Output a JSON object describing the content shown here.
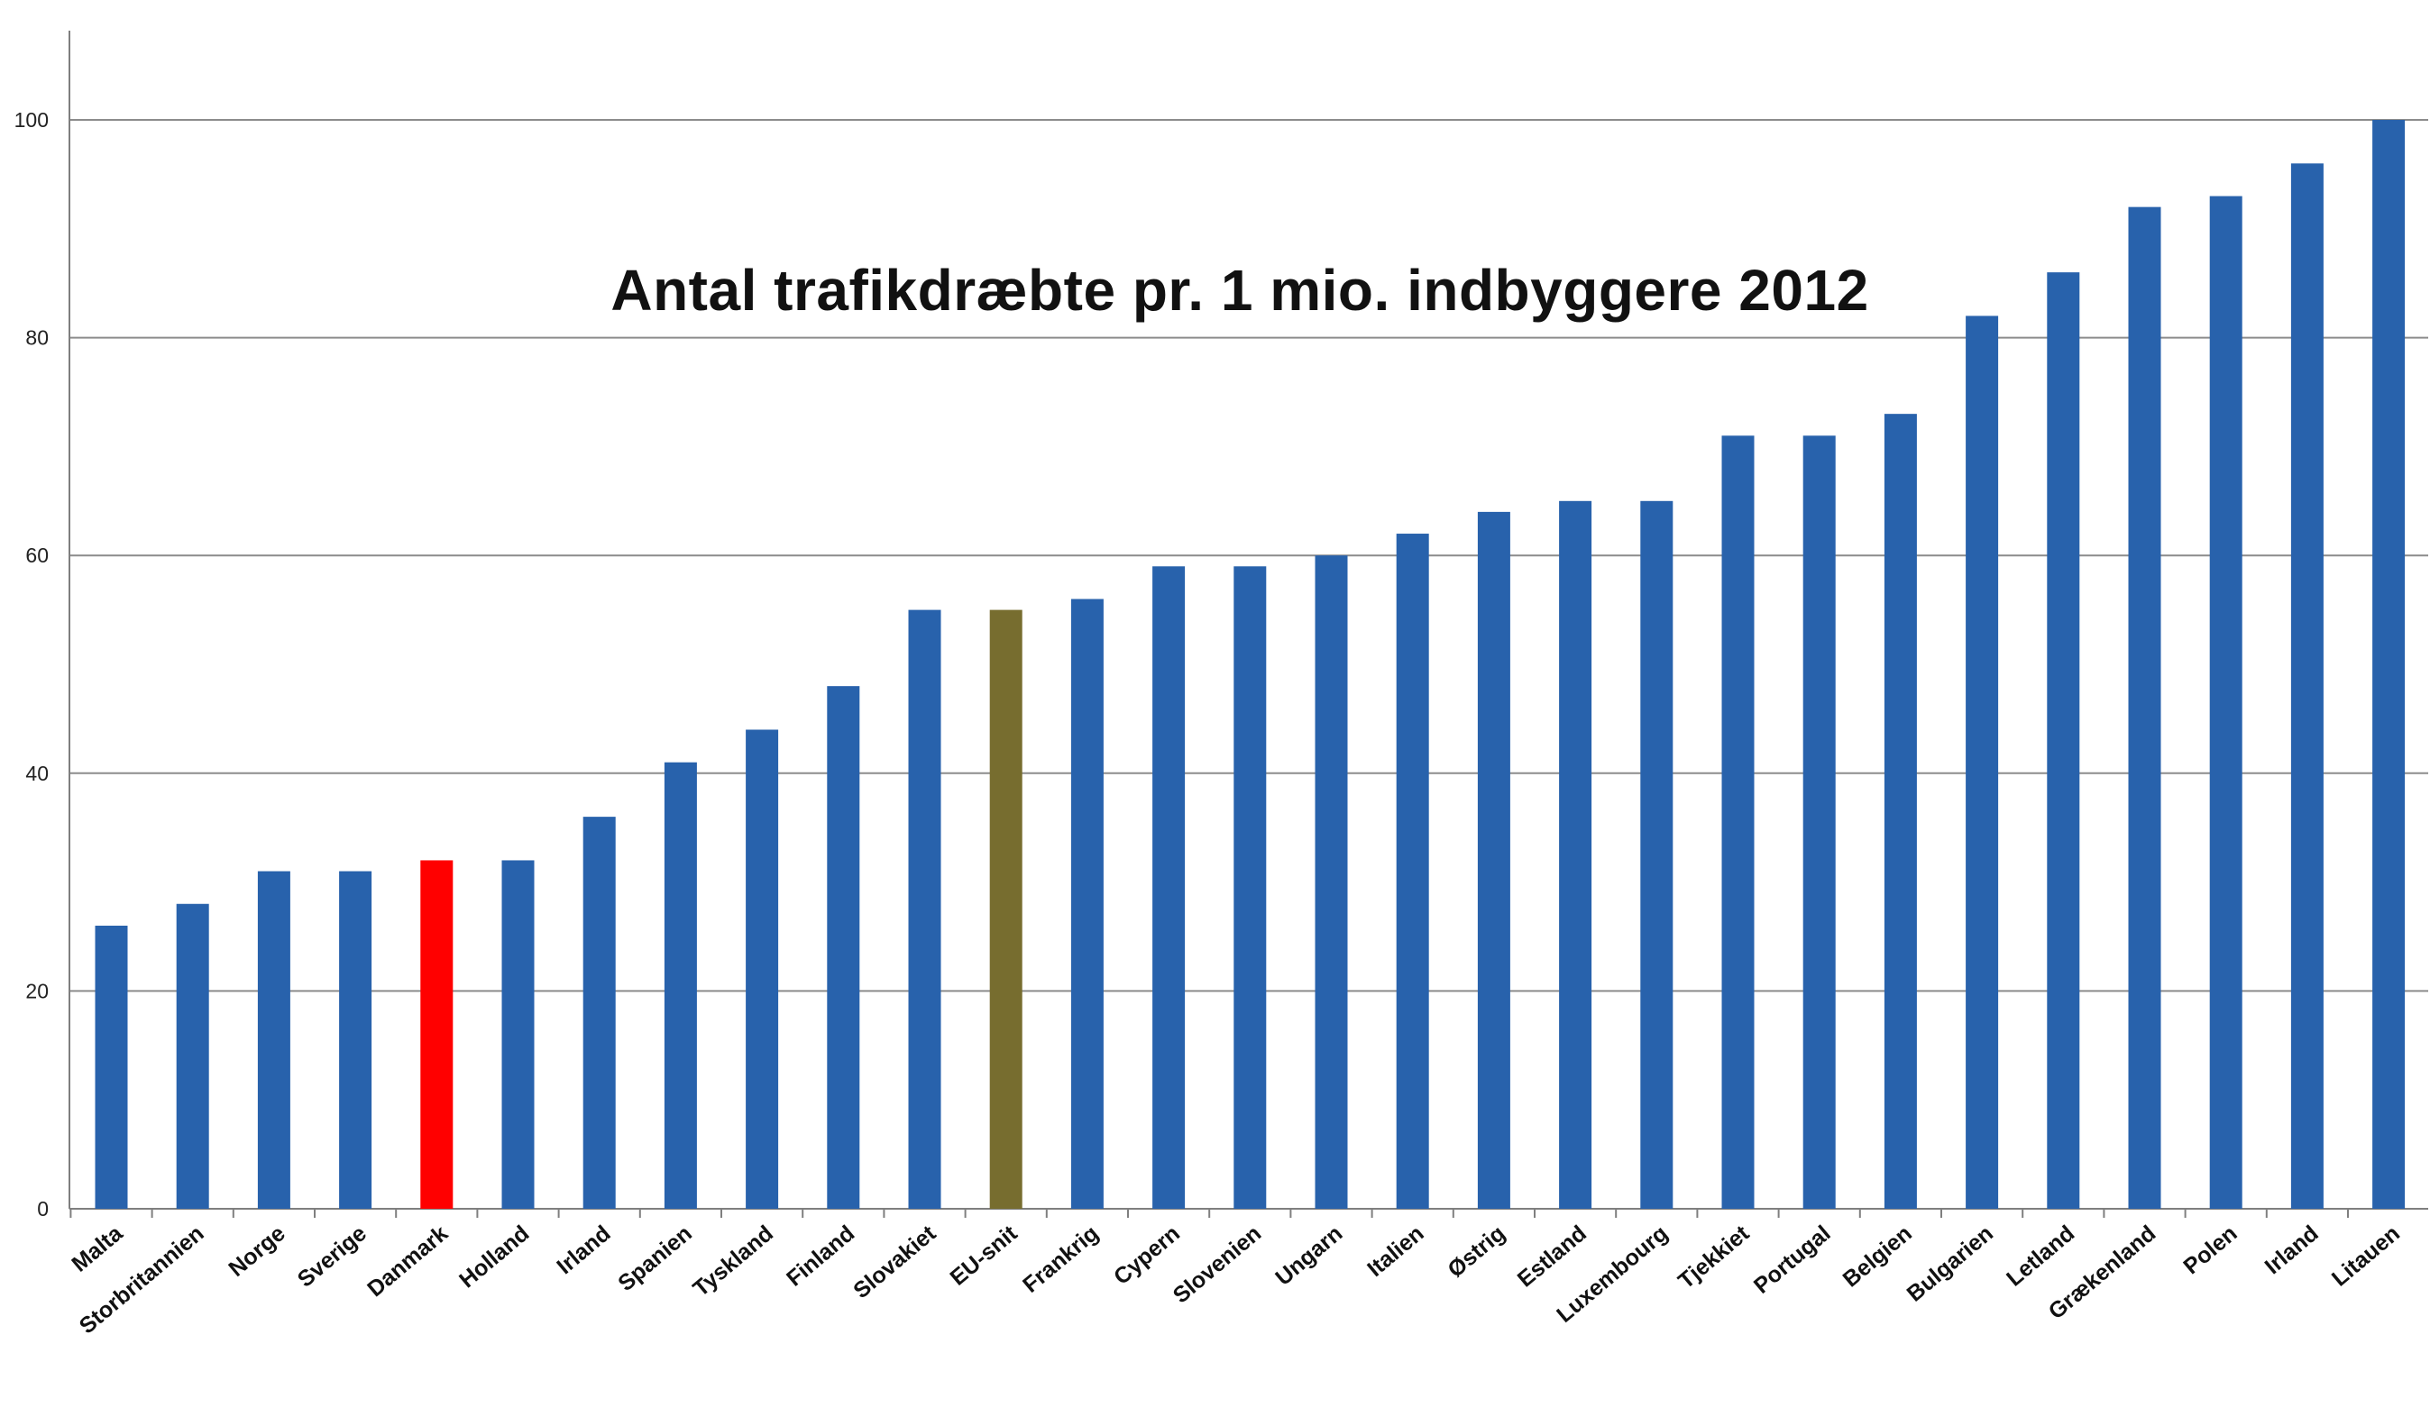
{
  "chart_data": {
    "type": "bar",
    "title": "Antal trafikdræbte pr. 1 mio. indbyggere 2012",
    "xlabel": "",
    "ylabel": "",
    "ylim": [
      0,
      110
    ],
    "yticks": [
      0,
      20,
      40,
      60,
      80,
      100
    ],
    "grid": true,
    "legend": "none",
    "categories": [
      "Malta",
      "Storbritannien",
      "Norge",
      "Sverige",
      "Danmark",
      "Holland",
      "Irland",
      "Spanien",
      "Tyskland",
      "Finland",
      "Slovakiet",
      "EU-snit",
      "Frankrig",
      "Cypern",
      "Slovenien",
      "Ungarn",
      "Italien",
      "Østrig",
      "Estland",
      "Luxembourg",
      "Tjekkiet",
      "Portugal",
      "Belgien",
      "Bulgarien",
      "Letland",
      "Grækenland",
      "Polen",
      "Irland",
      "Litauen"
    ],
    "values": [
      26,
      28,
      31,
      31,
      32,
      32,
      36,
      41,
      44,
      48,
      55,
      55,
      56,
      59,
      59,
      60,
      62,
      64,
      65,
      65,
      71,
      71,
      73,
      82,
      86,
      92,
      93,
      96,
      100
    ],
    "colors": {
      "default": "#2862ac",
      "Danmark": "#ff0000",
      "EU-snit": "#776d2f",
      "grid": "#8c8c8c",
      "axis": "#7f7f7f"
    }
  }
}
